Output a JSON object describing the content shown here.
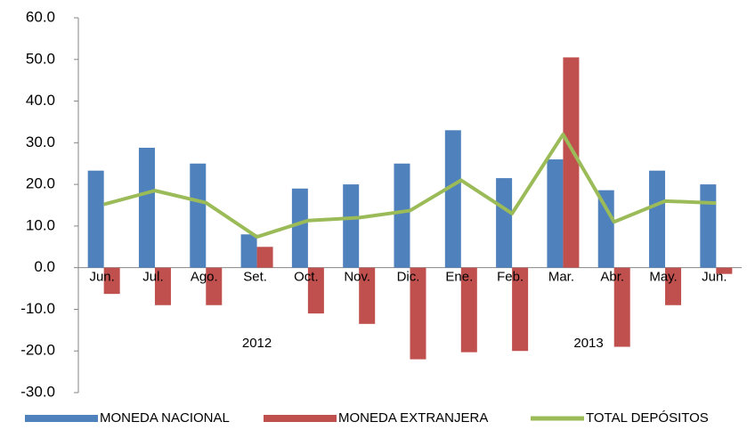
{
  "chart_data": {
    "type": "bar-line",
    "categories": [
      "Jun.",
      "Jul.",
      "Ago.",
      "Set.",
      "Oct.",
      "Nov.",
      "Dic.",
      "Ene.",
      "Feb.",
      "Mar.",
      "Abr.",
      "May.",
      "Jun."
    ],
    "groups": [
      {
        "label": "2012",
        "from": 0,
        "to": 6
      },
      {
        "label": "2013",
        "from": 7,
        "to": 12
      }
    ],
    "series": [
      {
        "name": "MONEDA NACIONAL",
        "type": "bar",
        "color": "#4f81bd",
        "values": [
          23.3,
          28.8,
          25.0,
          8.0,
          19.0,
          20.0,
          25.0,
          33.0,
          21.5,
          26.0,
          18.6,
          23.3,
          20.0
        ]
      },
      {
        "name": "MONEDA EXTRANJERA",
        "type": "bar",
        "color": "#c0504d",
        "values": [
          -6.3,
          -9.0,
          -9.0,
          5.0,
          -11.0,
          -13.5,
          -22.0,
          -20.3,
          -20.0,
          50.5,
          -19.0,
          -9.0,
          -1.5
        ]
      },
      {
        "name": "TOTAL DEPÓSITOS",
        "type": "line",
        "color": "#9bbb59",
        "values": [
          15.2,
          18.5,
          15.6,
          7.4,
          11.3,
          12.0,
          13.7,
          21.0,
          13.0,
          32.0,
          11.0,
          16.0,
          15.5
        ]
      }
    ],
    "ylim": [
      -30,
      60
    ],
    "yticks": [
      {
        "value": 60,
        "label": "60.0"
      },
      {
        "value": 50,
        "label": "50.0"
      },
      {
        "value": 40,
        "label": "40.0"
      },
      {
        "value": 30,
        "label": "30.0"
      },
      {
        "value": 20,
        "label": "20.0"
      },
      {
        "value": 10,
        "label": "10.0"
      },
      {
        "value": 0,
        "label": "0.0"
      },
      {
        "value": -10,
        "label": "-10.0"
      },
      {
        "value": -20,
        "label": "-20.0"
      },
      {
        "value": -30,
        "label": "-30.0"
      }
    ],
    "legend": "bottom"
  }
}
